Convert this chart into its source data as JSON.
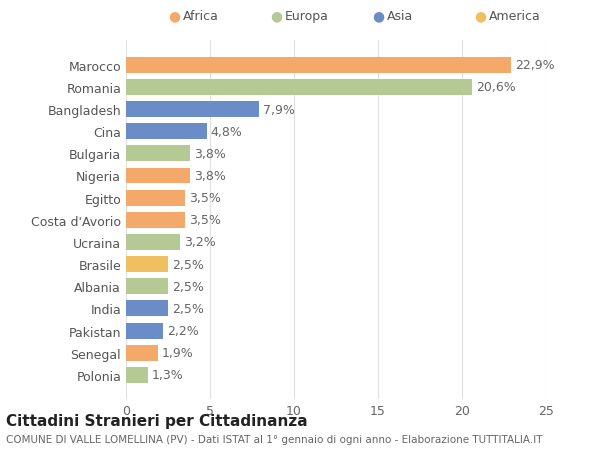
{
  "categories": [
    "Polonia",
    "Senegal",
    "Pakistan",
    "India",
    "Albania",
    "Brasile",
    "Ucraina",
    "Costa d'Avorio",
    "Egitto",
    "Nigeria",
    "Bulgaria",
    "Cina",
    "Bangladesh",
    "Romania",
    "Marocco"
  ],
  "values": [
    1.3,
    1.9,
    2.2,
    2.5,
    2.5,
    2.5,
    3.2,
    3.5,
    3.5,
    3.8,
    3.8,
    4.8,
    7.9,
    20.6,
    22.9
  ],
  "labels": [
    "1,3%",
    "1,9%",
    "2,2%",
    "2,5%",
    "2,5%",
    "2,5%",
    "3,2%",
    "3,5%",
    "3,5%",
    "3,8%",
    "3,8%",
    "4,8%",
    "7,9%",
    "20,6%",
    "22,9%"
  ],
  "colors": [
    "#b5c994",
    "#f4a96a",
    "#6a8dc7",
    "#6a8dc7",
    "#b5c994",
    "#f0c060",
    "#b5c994",
    "#f4a96a",
    "#f4a96a",
    "#f4a96a",
    "#b5c994",
    "#6a8dc7",
    "#6a8dc7",
    "#b5c994",
    "#f4a96a"
  ],
  "legend_labels": [
    "Africa",
    "Europa",
    "Asia",
    "America"
  ],
  "legend_colors": [
    "#f4a96a",
    "#b5c994",
    "#6a8dc7",
    "#f0c060"
  ],
  "title": "Cittadini Stranieri per Cittadinanza",
  "subtitle": "COMUNE DI VALLE LOMELLINA (PV) - Dati ISTAT al 1° gennaio di ogni anno - Elaborazione TUTTITALIA.IT",
  "xlim": [
    0,
    25
  ],
  "xticks": [
    0,
    5,
    10,
    15,
    20,
    25
  ],
  "background_color": "#ffffff",
  "grid_color": "#e0e0e0",
  "bar_height": 0.72,
  "label_fontsize": 9,
  "tick_fontsize": 9,
  "title_fontsize": 11,
  "subtitle_fontsize": 7.5
}
